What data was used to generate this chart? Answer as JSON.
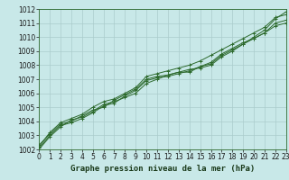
{
  "title": "Graphe pression niveau de la mer (hPa)",
  "bg_color": "#c8e8e8",
  "grid_color": "#aacccc",
  "line_color": "#2d6a2d",
  "xlim": [
    0,
    23
  ],
  "ylim": [
    1002,
    1012
  ],
  "xticks": [
    0,
    1,
    2,
    3,
    4,
    5,
    6,
    7,
    8,
    9,
    10,
    11,
    12,
    13,
    14,
    15,
    16,
    17,
    18,
    19,
    20,
    21,
    22,
    23
  ],
  "yticks": [
    1002,
    1003,
    1004,
    1005,
    1006,
    1007,
    1008,
    1009,
    1010,
    1011,
    1012
  ],
  "series": [
    [
      1002.3,
      1003.1,
      1003.8,
      1004.0,
      1004.4,
      1004.8,
      1005.0,
      1005.5,
      1005.9,
      1006.3,
      1007.0,
      1007.2,
      1007.3,
      1007.5,
      1007.7,
      1007.8,
      1008.0,
      1008.6,
      1009.0,
      1009.5,
      1010.0,
      1010.5,
      1011.3,
      1011.8
    ],
    [
      1002.1,
      1003.0,
      1003.7,
      1003.9,
      1004.2,
      1004.6,
      1005.1,
      1005.3,
      1005.8,
      1006.2,
      1006.9,
      1007.1,
      1007.2,
      1007.4,
      1007.6,
      1007.9,
      1008.1,
      1008.7,
      1009.1,
      1009.5,
      1009.9,
      1010.3,
      1011.0,
      1011.2
    ],
    [
      1002.0,
      1002.9,
      1003.6,
      1004.1,
      1004.3,
      1004.7,
      1005.2,
      1005.4,
      1005.7,
      1006.0,
      1006.7,
      1007.0,
      1007.3,
      1007.5,
      1007.5,
      1007.9,
      1008.2,
      1008.8,
      1009.2,
      1009.6,
      1009.9,
      1010.3,
      1010.8,
      1011.0
    ],
    [
      1002.2,
      1003.2,
      1003.9,
      1004.2,
      1004.5,
      1005.0,
      1005.4,
      1005.6,
      1006.0,
      1006.4,
      1007.2,
      1007.4,
      1007.6,
      1007.8,
      1008.0,
      1008.3,
      1008.7,
      1009.1,
      1009.5,
      1009.9,
      1010.3,
      1010.7,
      1011.4,
      1011.6
    ]
  ],
  "title_fontsize": 6.5,
  "tick_fontsize": 5.5
}
